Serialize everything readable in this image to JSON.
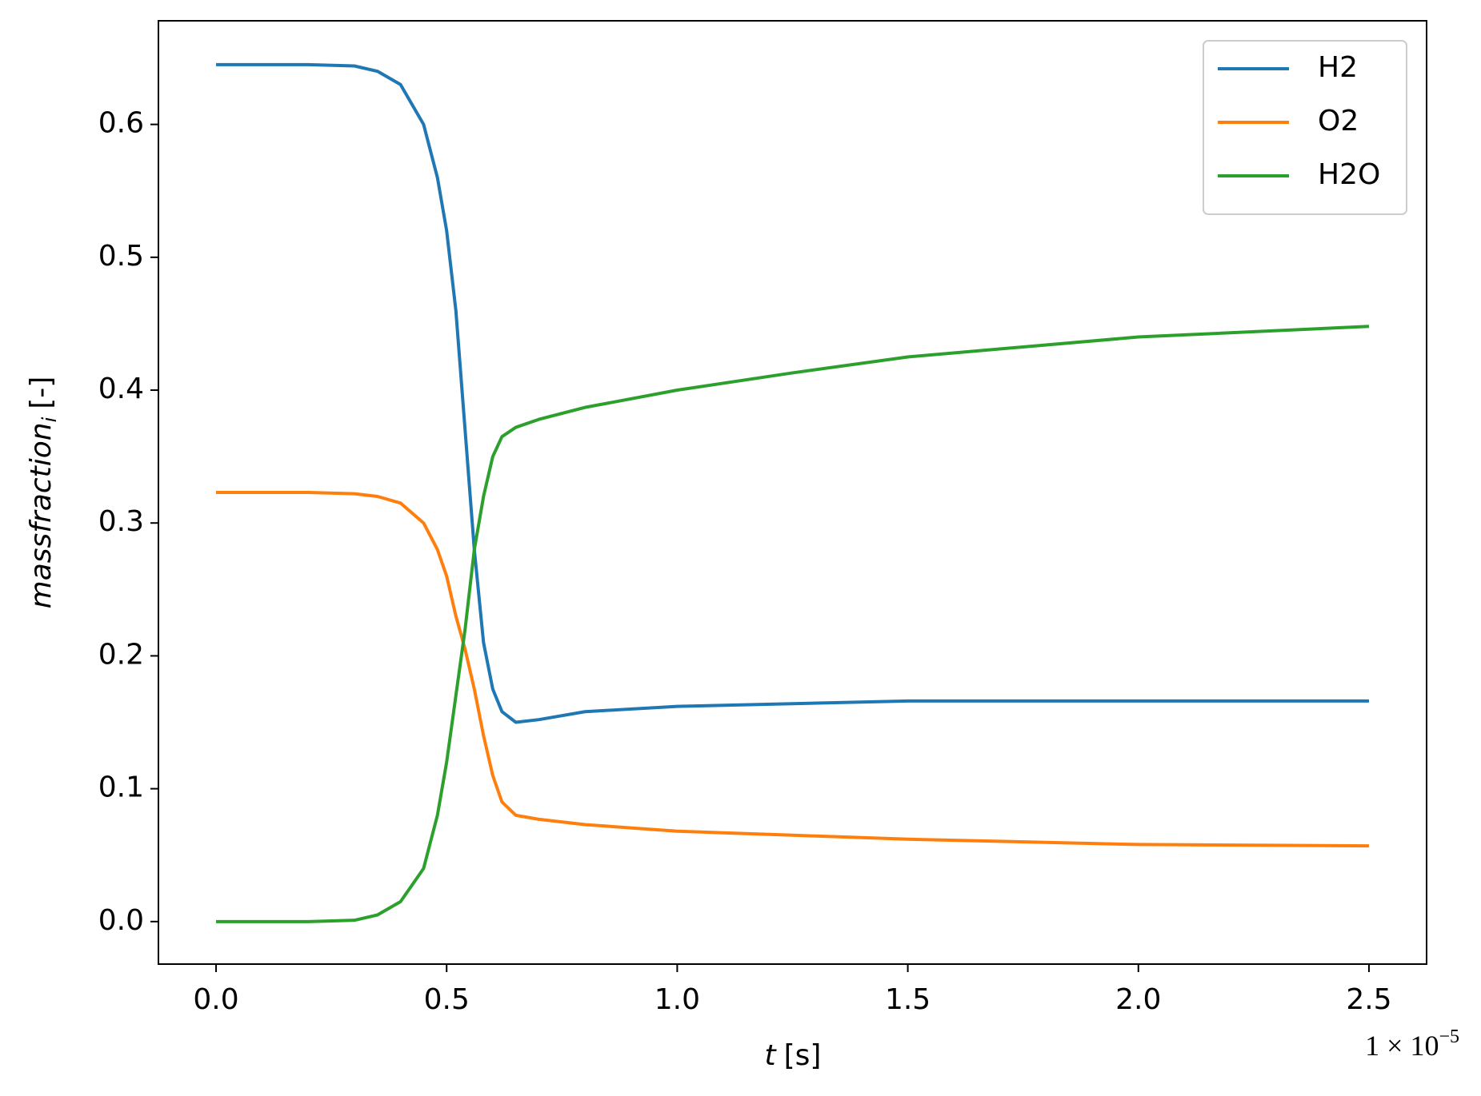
{
  "chart_data": {
    "type": "line",
    "xlabel": "t",
    "xlabel_unit": "[s]",
    "x_offset": "1 × 10",
    "x_offset_exponent": "−5",
    "ylabel": "massfraction",
    "ylabel_subscript": "i",
    "ylabel_unit": "[-]",
    "x": [
      0,
      0.2,
      0.3,
      0.35,
      0.4,
      0.45,
      0.48,
      0.5,
      0.52,
      0.54,
      0.56,
      0.58,
      0.6,
      0.62,
      0.65,
      0.7,
      0.8,
      1.0,
      1.25,
      1.5,
      2.0,
      2.5
    ],
    "series": [
      {
        "name": "H2",
        "color": "#1f77b4",
        "values": [
          0.645,
          0.645,
          0.644,
          0.64,
          0.63,
          0.6,
          0.56,
          0.52,
          0.46,
          0.37,
          0.28,
          0.21,
          0.175,
          0.158,
          0.15,
          0.152,
          0.158,
          0.162,
          0.164,
          0.166,
          0.166,
          0.166
        ]
      },
      {
        "name": "O2",
        "color": "#ff7f0e",
        "values": [
          0.323,
          0.323,
          0.322,
          0.32,
          0.315,
          0.3,
          0.28,
          0.26,
          0.23,
          0.205,
          0.175,
          0.14,
          0.11,
          0.09,
          0.08,
          0.077,
          0.073,
          0.068,
          0.065,
          0.062,
          0.058,
          0.057
        ]
      },
      {
        "name": "H2O",
        "color": "#2ca02c",
        "values": [
          0,
          0,
          0.001,
          0.005,
          0.015,
          0.04,
          0.08,
          0.12,
          0.17,
          0.22,
          0.28,
          0.32,
          0.35,
          0.365,
          0.372,
          0.378,
          0.387,
          0.4,
          0.413,
          0.425,
          0.44,
          0.448
        ]
      }
    ],
    "xlim": [
      -0.125,
      2.625
    ],
    "xticks": [
      {
        "value": 0,
        "label": "0.0"
      },
      0.5,
      {
        "value": 1,
        "label": "1.0"
      },
      1.5,
      {
        "value": 2,
        "label": "2.0"
      },
      2.5
    ],
    "ylim": [
      -0.032,
      0.678
    ],
    "yticks": [
      {
        "value": 0,
        "label": "0.0"
      },
      0.1,
      0.2,
      0.3,
      0.4,
      0.5,
      0.6
    ],
    "grid": false,
    "legend": "upper right"
  }
}
